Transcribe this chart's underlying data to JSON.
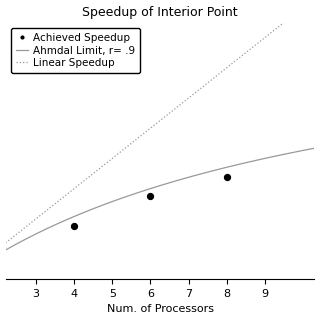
{
  "title": "Speedup of Interior Point",
  "xlabel": "Num. of Processors",
  "ylabel": "",
  "scatter_x": [
    4,
    6,
    8
  ],
  "scatter_y": [
    2.75,
    3.75,
    4.4
  ],
  "r_amdahl": 0.9,
  "x_range": [
    2.2,
    10.3
  ],
  "y_range": [
    1.0,
    9.5
  ],
  "xticks": [
    3,
    4,
    5,
    6,
    7,
    8,
    9
  ],
  "legend_labels": [
    "Achieved Speedup",
    "Ahmdal Limit, r= .9",
    "Linear Speedup"
  ],
  "amdahl_color": "#999999",
  "linear_color": "#999999",
  "scatter_color": "black",
  "bg_color": "white",
  "title_fontsize": 9,
  "axis_fontsize": 8,
  "legend_fontsize": 7.5
}
